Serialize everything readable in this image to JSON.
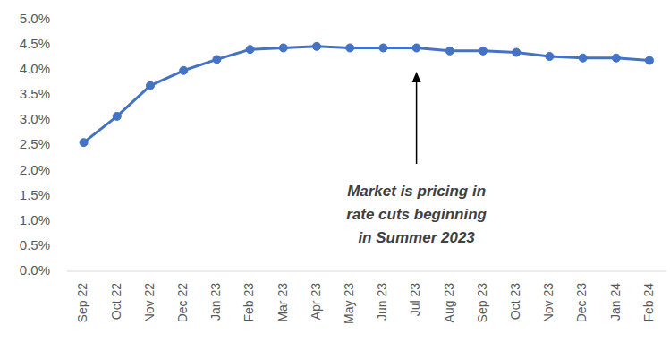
{
  "chart_data": {
    "type": "line",
    "categories": [
      "Sep 22",
      "Oct 22",
      "Nov 22",
      "Dec 22",
      "Jan 23",
      "Feb 23",
      "Mar 23",
      "Apr 23",
      "May 23",
      "Jun 23",
      "Jul 23",
      "Aug 23",
      "Sep 23",
      "Oct 23",
      "Nov 23",
      "Dec 23",
      "Jan 24",
      "Feb 24"
    ],
    "values": [
      2.56,
      3.08,
      3.69,
      3.99,
      4.21,
      4.41,
      4.44,
      4.47,
      4.44,
      4.44,
      4.44,
      4.38,
      4.38,
      4.35,
      4.27,
      4.24,
      4.24,
      4.19
    ],
    "color": "#4472c4",
    "marker": "circle",
    "ylim": [
      0,
      5
    ],
    "yticks": [
      {
        "value": 0,
        "label": "0.0%"
      },
      {
        "value": 0.5,
        "label": "0.5%"
      },
      {
        "value": 1,
        "label": "1.0%"
      },
      {
        "value": 1.5,
        "label": "1.5%"
      },
      {
        "value": 2,
        "label": "2.0%"
      },
      {
        "value": 2.5,
        "label": "2.5%"
      },
      {
        "value": 3,
        "label": "3.0%"
      },
      {
        "value": 3.5,
        "label": "3.5%"
      },
      {
        "value": 4,
        "label": "4.0%"
      },
      {
        "value": 4.5,
        "label": "4.5%"
      },
      {
        "value": 5,
        "label": "5.0%"
      }
    ],
    "grid": false,
    "annotation": [
      "Market is pricing in",
      "rate cuts beginning",
      "in Summer 2023"
    ]
  }
}
